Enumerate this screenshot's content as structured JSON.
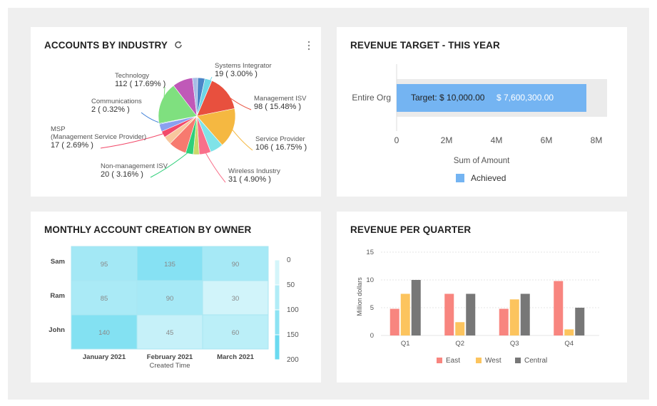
{
  "cards": {
    "industry": {
      "title": "ACCOUNTS BY INDUSTRY",
      "icons": [
        "refresh-icon",
        "kebab-menu-icon"
      ],
      "chart_data": {
        "type": "pie",
        "title": "ACCOUNTS BY INDUSTRY",
        "slices": [
          {
            "label": "Management ISV",
            "value": 98,
            "display": "98 ( 15.48% )",
            "color": "#e8503e"
          },
          {
            "label": "Service Provider",
            "value": 106,
            "display": "106 ( 16.75% )",
            "color": "#f5b841"
          },
          {
            "label": "",
            "value": 35,
            "display": "",
            "color": "#7fe3e8"
          },
          {
            "label": "Wireless Industry",
            "value": 31,
            "display": "31 ( 4.90% )",
            "color": "#f96f8a"
          },
          {
            "label": "",
            "value": 16,
            "display": "",
            "color": "#c9d96a"
          },
          {
            "label": "Non-management ISV",
            "value": 20,
            "display": "20 ( 3.16% )",
            "color": "#2fcf7a"
          },
          {
            "label": "",
            "value": 48,
            "display": "",
            "color": "#f77a6f"
          },
          {
            "label": "",
            "value": 22,
            "display": "",
            "color": "#f8c79e"
          },
          {
            "label": "MSP\n(Management Service Provider)",
            "value": 17,
            "display": "17 ( 2.69% )",
            "color": "#f24a6a"
          },
          {
            "label": "",
            "value": 20,
            "display": "",
            "color": "#8aa0f0"
          },
          {
            "label": "Communications",
            "value": 2,
            "display": "2 ( 0.32% )",
            "color": "#3d7fd8"
          },
          {
            "label": "Technology",
            "value": 112,
            "display": "112 ( 17.69% )",
            "color": "#7fe07f"
          },
          {
            "label": "",
            "value": 54,
            "display": "",
            "color": "#c059b8"
          },
          {
            "label": "",
            "value": 14,
            "display": "",
            "color": "#a7bde6"
          },
          {
            "label": "",
            "value": 19,
            "display": "",
            "color": "#4a86c8"
          },
          {
            "label": "Systems Integrator",
            "value": 19,
            "display": "19 ( 3.00% )",
            "color": "#6ed6e6"
          }
        ]
      }
    },
    "revenue_target": {
      "title": "REVENUE TARGET - THIS YEAR",
      "chart_data": {
        "type": "bar",
        "orientation": "horizontal",
        "categories": [
          "Entire Org"
        ],
        "series": [
          {
            "name": "Achieved",
            "values": [
              7600300
            ]
          }
        ],
        "target": 10000,
        "target_label": "Target: $ 10,000.00",
        "value_label": "$ 7,600,300.00",
        "xlabel": "Sum of Amount",
        "xlim": [
          0,
          8000000
        ],
        "xticks": [
          "0",
          "2M",
          "4M",
          "6M",
          "8M"
        ],
        "legend": "bottom",
        "color": "#74b4f2"
      }
    },
    "monthly": {
      "title": "MONTHLY ACCOUNT CREATION BY OWNER",
      "chart_data": {
        "type": "heatmap",
        "rows": [
          "Sam",
          "Ram",
          "John"
        ],
        "columns": [
          "January 2021",
          "February 2021",
          "March 2021"
        ],
        "values": [
          [
            95,
            135,
            90
          ],
          [
            85,
            90,
            30
          ],
          [
            140,
            45,
            60
          ]
        ],
        "xlabel": "Created Time",
        "color_scale": {
          "min": 0,
          "max": 200,
          "ticks": [
            "0",
            "50",
            "100",
            "150",
            "200"
          ]
        }
      }
    },
    "quarter": {
      "title": "REVENUE PER QUARTER",
      "chart_data": {
        "type": "bar",
        "categories": [
          "Q1",
          "Q2",
          "Q3",
          "Q4"
        ],
        "series": [
          {
            "name": "East",
            "values": [
              4.8,
              7.5,
              4.8,
              9.8
            ],
            "color": "#f8857f"
          },
          {
            "name": "West",
            "values": [
              7.5,
              2.4,
              6.5,
              1.1
            ],
            "color": "#fcc45e"
          },
          {
            "name": "Central",
            "values": [
              10,
              7.5,
              7.5,
              5
            ],
            "color": "#777777"
          }
        ],
        "ylabel": "Million dollars",
        "ylim": [
          0,
          15
        ],
        "yticks": [
          "0",
          "5",
          "10",
          "15"
        ],
        "grid": true,
        "legend": "bottom"
      }
    }
  }
}
